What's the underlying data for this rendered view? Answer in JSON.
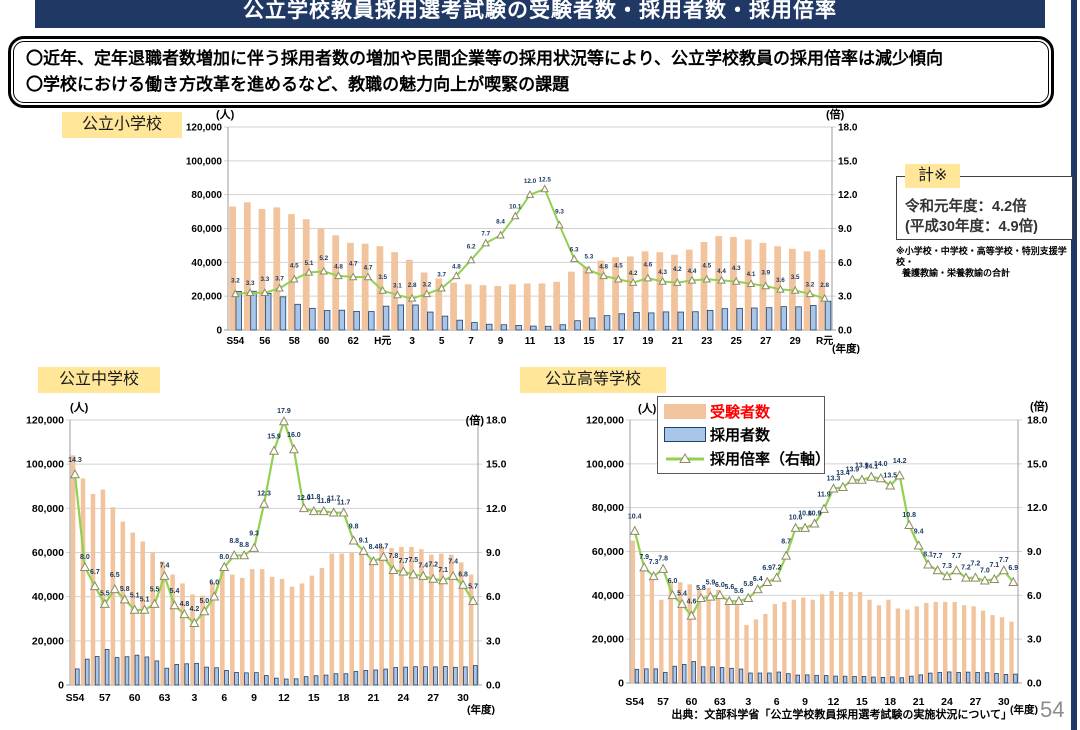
{
  "page": {
    "title": "公立学校教員採用選考試験の受験者数・採用者数・採用倍率",
    "bullet1": "〇近年、定年退職者数増加に伴う採用者数の増加や民間企業等の採用状況等により、公立学校教員の採用倍率は減少傾向",
    "bullet2": "〇学校における働き方改革を進めるなど、教職の魅力向上が喫緊の課題",
    "source": "出典：文部科学省「公立学校教員採用選考試験の実施状況について」",
    "page_number": "54"
  },
  "summary_box": {
    "label": "計※",
    "line1": "令和元年度：4.2倍",
    "line2": "(平成30年度：4.9倍)",
    "footnote1": "※小学校・中学校・高等学校・特別支援学校・",
    "footnote2": "養護教諭・栄養教諭の合計"
  },
  "legend": {
    "applicants": "受験者数",
    "hires": "採用者数",
    "ratio": "採用倍率（右軸）"
  },
  "colors": {
    "navy": "#1F3864",
    "applicants": "#F2C49E",
    "hires": "#A8C6E8",
    "hires_border": "#24406E",
    "ratio": "#92D050",
    "marker_stroke": "#8A8A6A",
    "marker_fill": "#FFFDF0",
    "value_label": "#17365D",
    "yellow": "#FFE699",
    "red": "#FF0000",
    "grid": "#D2D2D2",
    "axis": "#9E9E9E",
    "page_number_gray": "#8C8C8C"
  },
  "chart_data": [
    {
      "id": "elementary",
      "type": "bar+line",
      "title": "公立小学校",
      "unit_left": "(人)",
      "unit_right": "(倍)",
      "x_axis_unit": "(年度)",
      "ylim_left": [
        0,
        120000
      ],
      "ylim_right": [
        0,
        18
      ],
      "yticks_left": [
        "120,000",
        "100,000",
        "80,000",
        "60,000",
        "40,000",
        "20,000",
        "0"
      ],
      "yticks_right": [
        "18.0",
        "15.0",
        "12.0",
        "9.0",
        "6.0",
        "3.0",
        "0.0"
      ],
      "x_tick_labels": [
        "S54",
        "56",
        "58",
        "60",
        "62",
        "H元",
        "3",
        "5",
        "7",
        "9",
        "11",
        "13",
        "15",
        "17",
        "19",
        "21",
        "23",
        "25",
        "27",
        "29",
        "R元"
      ],
      "x_tick_indices": [
        0,
        2,
        4,
        6,
        8,
        10,
        12,
        14,
        16,
        18,
        20,
        22,
        24,
        26,
        28,
        30,
        32,
        34,
        36,
        38,
        40
      ],
      "series": [
        {
          "name": "受験者数",
          "type": "bar",
          "color_key": "applicants",
          "values": [
            73000,
            75500,
            71500,
            72500,
            68500,
            65500,
            60000,
            56000,
            51500,
            51000,
            49500,
            46000,
            41500,
            34000,
            30500,
            28000,
            27000,
            26500,
            26000,
            27000,
            27500,
            27500,
            28500,
            34500,
            37500,
            41000,
            43000,
            43500,
            46500,
            46000,
            44500,
            47500,
            52000,
            55500,
            55000,
            53500,
            51500,
            49500,
            48000,
            46500,
            47500
          ]
        },
        {
          "name": "採用者数",
          "type": "bar",
          "color_key": "hires",
          "values": [
            22800,
            22900,
            21700,
            19600,
            15200,
            12800,
            11500,
            11700,
            11000,
            10900,
            14100,
            14800,
            14800,
            10600,
            8200,
            5800,
            4400,
            3400,
            3100,
            2700,
            2300,
            2200,
            3100,
            5500,
            7100,
            8500,
            9600,
            10400,
            10100,
            10700,
            10600,
            10800,
            11600,
            12600,
            12800,
            13000,
            13200,
            13800,
            13700,
            14500,
            17000
          ]
        },
        {
          "name": "採用倍率（右軸）",
          "type": "line",
          "axis": "right",
          "color_key": "ratio",
          "labels": true,
          "values": [
            3.2,
            3.3,
            3.3,
            3.7,
            4.5,
            5.1,
            5.2,
            4.8,
            4.7,
            4.7,
            3.5,
            3.1,
            2.8,
            3.2,
            3.7,
            4.8,
            6.2,
            7.7,
            8.4,
            10.1,
            12.0,
            12.5,
            9.3,
            6.3,
            5.3,
            4.8,
            4.5,
            4.2,
            4.6,
            4.3,
            4.2,
            4.4,
            4.5,
            4.4,
            4.3,
            4.1,
            3.9,
            3.6,
            3.5,
            3.2,
            2.8
          ]
        }
      ]
    },
    {
      "id": "middle",
      "type": "bar+line",
      "title": "公立中学校",
      "unit_left": "(人)",
      "unit_right": "(倍)",
      "x_axis_unit": "(年度)",
      "ylim_left": [
        0,
        120000
      ],
      "ylim_right": [
        0,
        18
      ],
      "yticks_left": [
        "120,000",
        "100,000",
        "80,000",
        "60,000",
        "40,000",
        "20,000",
        "0"
      ],
      "yticks_right": [
        "18.0",
        "15.0",
        "12.0",
        "9.0",
        "6.0",
        "3.0",
        "0.0"
      ],
      "x_tick_labels": [
        "S54",
        "57",
        "60",
        "63",
        "3",
        "6",
        "9",
        "12",
        "15",
        "18",
        "21",
        "24",
        "27",
        "30"
      ],
      "x_tick_indices": [
        0,
        3,
        6,
        9,
        12,
        15,
        18,
        21,
        24,
        27,
        30,
        33,
        36,
        39
      ],
      "series": [
        {
          "name": "受験者数",
          "type": "bar",
          "color_key": "applicants",
          "values": [
            104000,
            93500,
            86500,
            88500,
            80500,
            74000,
            69000,
            65000,
            60000,
            56000,
            50000,
            46000,
            41000,
            40500,
            46500,
            53000,
            50000,
            48500,
            52500,
            52500,
            49000,
            48000,
            44500,
            46000,
            49500,
            53000,
            59500,
            59500,
            60000,
            60000,
            57500,
            62500,
            62000,
            62500,
            62500,
            61500,
            59000,
            59500,
            59000,
            55500,
            50000
          ]
        },
        {
          "name": "採用者数",
          "type": "bar",
          "color_key": "hires",
          "values": [
            7300,
            11700,
            12900,
            16100,
            12400,
            12800,
            13500,
            12700,
            10900,
            7600,
            9300,
            9600,
            9800,
            8100,
            7800,
            6600,
            5700,
            5500,
            5600,
            4300,
            3100,
            2700,
            2800,
            3800,
            4200,
            4500,
            5100,
            5100,
            6100,
            6600,
            6800,
            7200,
            7900,
            8100,
            8300,
            8300,
            8200,
            8400,
            8000,
            8200,
            8800
          ]
        },
        {
          "name": "採用倍率（右軸）",
          "type": "line",
          "axis": "right",
          "color_key": "ratio",
          "labels": true,
          "values": [
            14.3,
            8.0,
            6.7,
            5.5,
            6.5,
            5.8,
            5.1,
            5.1,
            5.5,
            7.4,
            5.4,
            4.8,
            4.2,
            5.0,
            6.0,
            8.0,
            8.8,
            8.8,
            9.3,
            12.3,
            15.9,
            17.9,
            16.0,
            12.0,
            11.8,
            11.8,
            11.7,
            11.7,
            9.8,
            9.1,
            8.4,
            8.7,
            7.8,
            7.7,
            7.5,
            7.4,
            7.2,
            7.1,
            7.4,
            6.8,
            5.7
          ]
        }
      ]
    },
    {
      "id": "high",
      "type": "bar+line",
      "title": "公立高等学校",
      "unit_left": "(人)",
      "unit_right": "(倍)",
      "x_axis_unit": "(年度)",
      "ylim_left": [
        0,
        120000
      ],
      "ylim_right": [
        0,
        18
      ],
      "yticks_left": [
        "120,000",
        "100,000",
        "80,000",
        "60,000",
        "40,000",
        "20,000",
        "0"
      ],
      "yticks_right": [
        "18.0",
        "15.0",
        "12.0",
        "9.0",
        "6.0",
        "3.0",
        "0.0"
      ],
      "x_tick_labels": [
        "S54",
        "57",
        "60",
        "63",
        "3",
        "6",
        "9",
        "12",
        "15",
        "18",
        "21",
        "24",
        "27",
        "30"
      ],
      "x_tick_indices": [
        0,
        3,
        6,
        9,
        12,
        15,
        18,
        21,
        24,
        27,
        30,
        33,
        36,
        39
      ],
      "series": [
        {
          "name": "受験者数",
          "type": "bar",
          "color_key": "applicants",
          "values": [
            65000,
            51000,
            47000,
            38000,
            46000,
            46000,
            45000,
            43000,
            43500,
            42500,
            37500,
            35500,
            26500,
            29000,
            31500,
            36000,
            37000,
            38000,
            39000,
            38000,
            40500,
            42000,
            41500,
            41500,
            41500,
            38000,
            35500,
            38000,
            34000,
            33500,
            35000,
            36500,
            37000,
            37000,
            37000,
            35500,
            35000,
            33000,
            31000,
            30000,
            28000
          ]
        },
        {
          "name": "採用者数",
          "type": "bar",
          "color_key": "hires",
          "values": [
            6250,
            6450,
            6450,
            4850,
            7650,
            8500,
            9800,
            7400,
            7350,
            7100,
            6700,
            6350,
            4550,
            4550,
            4550,
            5000,
            4250,
            3600,
            3700,
            3500,
            3400,
            3150,
            3100,
            3000,
            3000,
            2700,
            2550,
            2800,
            2400,
            3100,
            3700,
            4500,
            4800,
            5050,
            4800,
            4950,
            4850,
            4700,
            4350,
            3900,
            4050
          ]
        },
        {
          "name": "採用倍率（右軸）",
          "type": "line",
          "axis": "right",
          "color_key": "ratio",
          "labels": true,
          "values": [
            10.4,
            7.9,
            7.3,
            7.8,
            6.0,
            5.4,
            4.6,
            5.8,
            5.9,
            6.0,
            5.6,
            5.6,
            5.8,
            6.4,
            6.9,
            7.2,
            8.7,
            10.6,
            10.6,
            10.9,
            11.9,
            13.3,
            13.4,
            13.9,
            13.9,
            14.1,
            14.0,
            13.5,
            14.2,
            10.8,
            9.4,
            8.1,
            7.7,
            7.3,
            7.7,
            7.2,
            7.2,
            7.0,
            7.1,
            7.7,
            6.9
          ]
        }
      ]
    }
  ]
}
